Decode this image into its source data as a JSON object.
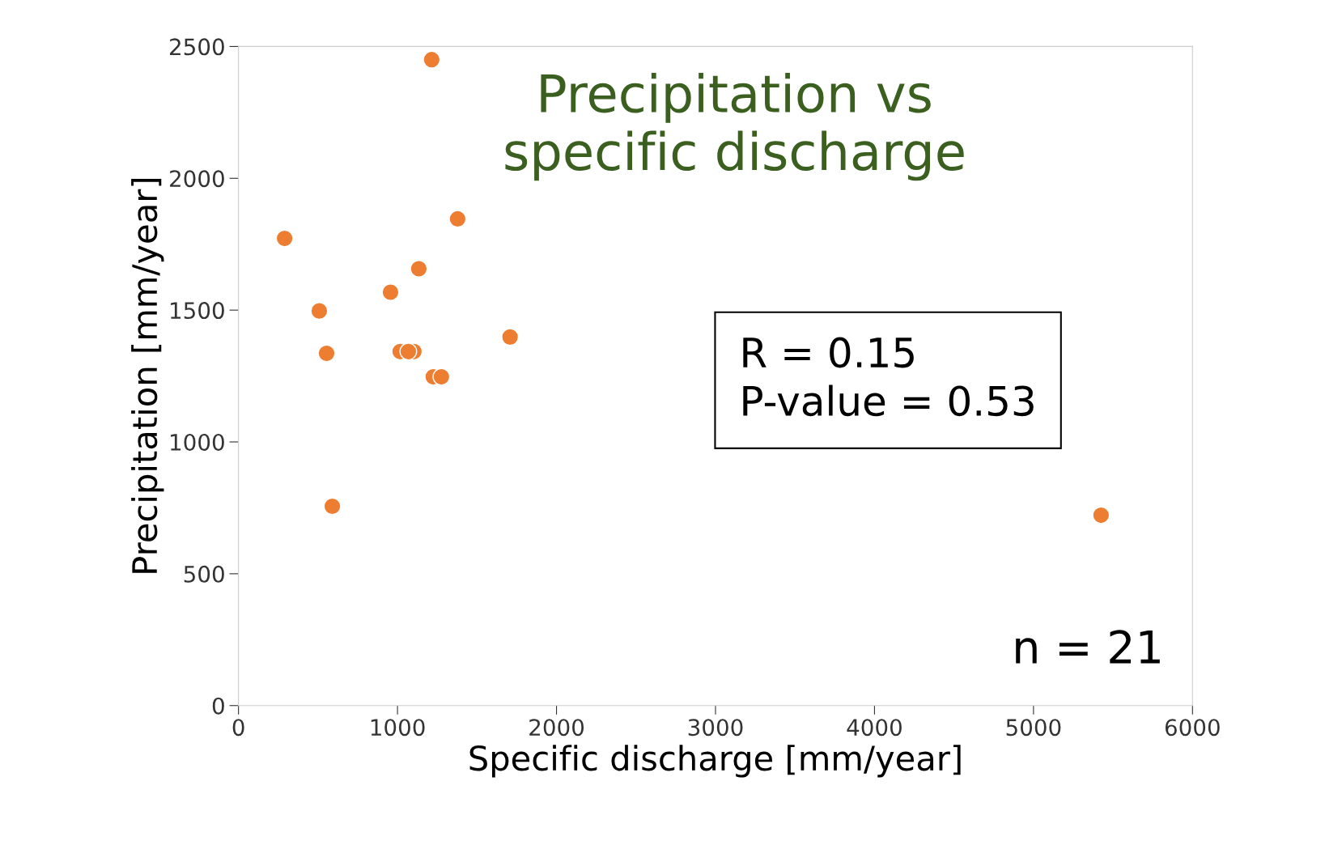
{
  "chart_data": {
    "type": "scatter",
    "title": "Precipitation vs\nspecific discharge",
    "xlabel": "Specific discharge [mm/year]",
    "ylabel": "Precipitation [mm/year]",
    "annotations": [
      "R = 0.15\nP-value = 0.53",
      "n = 21"
    ],
    "series": [
      {
        "color": "#ed7d31",
        "x": [
          1215,
          1378,
          290,
          1134,
          956,
          508,
          1708,
          554,
          1017,
          1103,
          1225,
          1276,
          590,
          5425,
          1068
        ],
        "values": [
          2450,
          1846,
          1772,
          1657,
          1568,
          1497,
          1398,
          1336,
          1343,
          1343,
          1247,
          1247,
          756,
          722,
          1343
        ]
      }
    ],
    "xlim": [
      0,
      6000
    ],
    "ylim": [
      0,
      2500
    ],
    "xticks": [
      0,
      1000,
      2000,
      3000,
      4000,
      5000,
      6000
    ],
    "yticks": [
      0,
      500,
      1000,
      1500,
      2000,
      2500
    ],
    "grid": false,
    "legend": false,
    "marker": "circle"
  }
}
